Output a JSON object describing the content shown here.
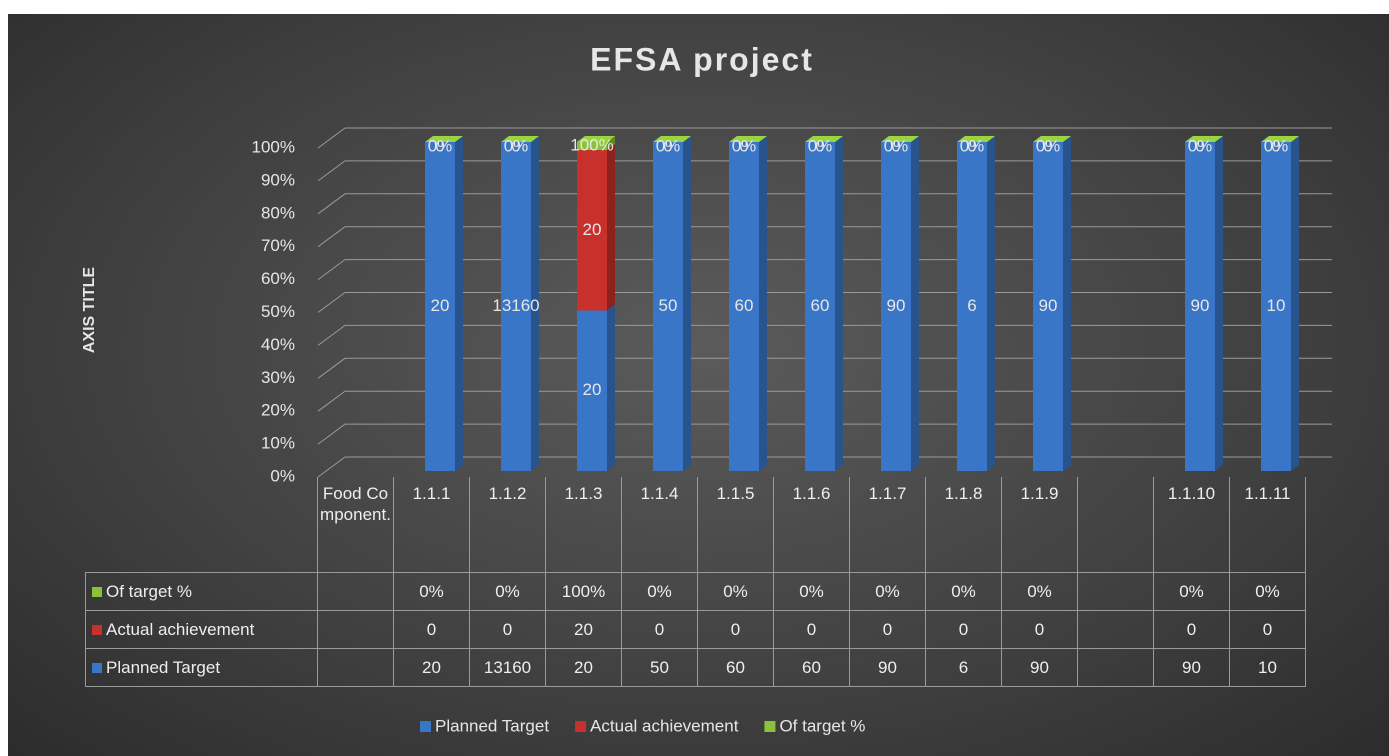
{
  "chart_data": {
    "type": "bar",
    "stacking": "percent",
    "title": "EFSA project",
    "y_axis_title": "AXIS TITLE",
    "categories": [
      "Food Component.",
      "1.1.1",
      "1.1.2",
      "1.1.3",
      "1.1.4",
      "1.1.5",
      "1.1.6",
      "1.1.7",
      "1.1.8",
      "1.1.9",
      null,
      "1.1.10",
      "1.1.11"
    ],
    "series": [
      {
        "name": "Planned Target",
        "color": "#3a76c8",
        "values": [
          null,
          20,
          13160,
          20,
          50,
          60,
          60,
          90,
          6,
          90,
          null,
          90,
          10
        ]
      },
      {
        "name": "Actual achievement",
        "color": "#c8302b",
        "values": [
          null,
          0,
          0,
          20,
          0,
          0,
          0,
          0,
          0,
          0,
          null,
          0,
          0
        ]
      },
      {
        "name": "Of target %",
        "color": "#8cc23a",
        "values": [
          null,
          0,
          0,
          1,
          0,
          0,
          0,
          0,
          0,
          0,
          null,
          0,
          0
        ],
        "value_labels": [
          null,
          "0%",
          "0%",
          "100%",
          "0%",
          "0%",
          "0%",
          "0%",
          "0%",
          "0%",
          null,
          "0%",
          "0%"
        ]
      }
    ],
    "ylim": [
      0,
      100
    ],
    "yticks": [
      {
        "value": 0,
        "label": "0%"
      },
      {
        "value": 10,
        "label": "10%"
      },
      {
        "value": 20,
        "label": "20%"
      },
      {
        "value": 30,
        "label": "30%"
      },
      {
        "value": 40,
        "label": "40%"
      },
      {
        "value": 50,
        "label": "50%"
      },
      {
        "value": 60,
        "label": "60%"
      },
      {
        "value": 70,
        "label": "70%"
      },
      {
        "value": 80,
        "label": "80%"
      },
      {
        "value": 90,
        "label": "90%"
      },
      {
        "value": 100,
        "label": "100%"
      }
    ],
    "grid": true,
    "legend": "bottom",
    "data_table": true
  }
}
